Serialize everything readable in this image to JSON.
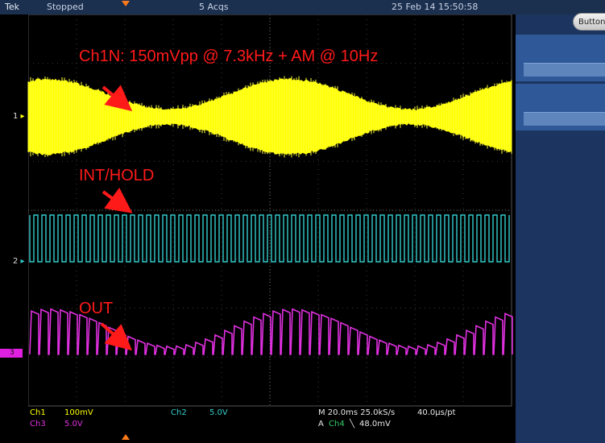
{
  "topbar": {
    "brand": "Tek",
    "status": "Stopped",
    "acqs": "5 Acqs",
    "datetime": "25 Feb 14 15:50:58"
  },
  "side_button": {
    "label": "Button"
  },
  "markers": {
    "ch1": "1",
    "ch2": "2",
    "ch3": "3"
  },
  "annotations": {
    "signal": "Ch1N: 150mVpp @ 7.3kHz + AM @ 10Hz",
    "control": "INT/HOLD",
    "output": "OUT"
  },
  "readouts": {
    "ch1_label": "Ch1",
    "ch1_scale": "100mV",
    "ch2_label": "Ch2",
    "ch2_scale": "5.0V",
    "ch3_label": "Ch3",
    "ch3_scale": "5.0V",
    "timebase": "M 20.0ms 25.0kS/s",
    "record": "40.0μs/pt",
    "trigger_prefix": "A",
    "trigger_source": "Ch4",
    "trigger_slope": "╲",
    "trigger_level": "48.0mV"
  },
  "colors": {
    "ch1": "#ffff00",
    "ch2": "#33cccc",
    "ch3": "#e030e0",
    "annotation": "#ff1a1a",
    "panel": "#1c3560"
  }
}
